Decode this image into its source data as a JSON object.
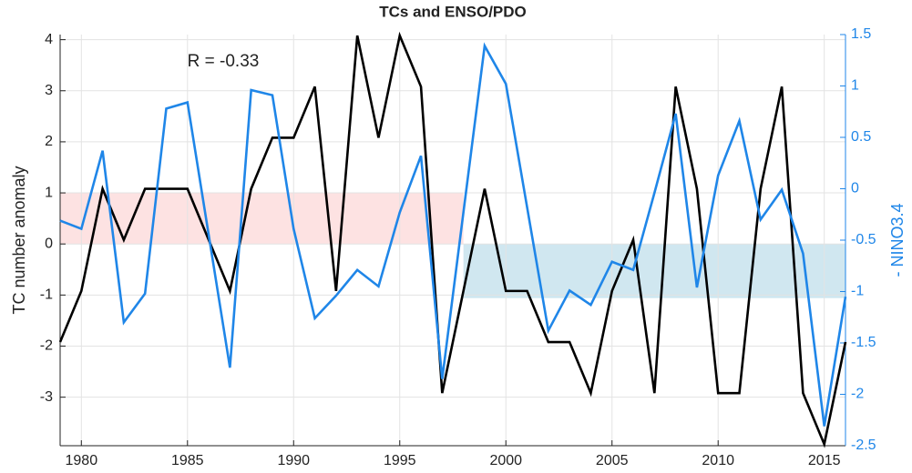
{
  "chart_data": {
    "type": "line",
    "title": "TCs and ENSO/PDO",
    "y_label": "TC number anomaly",
    "y2_label": "- NINO3.4",
    "annotation": "R = -0.33",
    "x": [
      1979,
      1980,
      1981,
      1982,
      1983,
      1984,
      1985,
      1986,
      1987,
      1988,
      1989,
      1990,
      1991,
      1992,
      1993,
      1994,
      1995,
      1996,
      1997,
      1998,
      1999,
      2000,
      2001,
      2002,
      2003,
      2004,
      2005,
      2006,
      2007,
      2008,
      2009,
      2010,
      2011,
      2012,
      2013,
      2014,
      2015,
      2016
    ],
    "series": [
      {
        "name": "TC number anomaly",
        "color": "#000000",
        "axis": "y",
        "values": [
          -1.92,
          -0.92,
          1.08,
          0.08,
          1.08,
          1.08,
          1.08,
          0.08,
          -0.92,
          1.08,
          2.08,
          2.08,
          3.08,
          -0.92,
          4.08,
          2.08,
          4.08,
          3.08,
          -2.92,
          -0.92,
          1.08,
          -0.92,
          -0.92,
          -1.92,
          -1.92,
          -2.92,
          -0.92,
          0.08,
          -2.92,
          3.08,
          1.08,
          -2.92,
          -2.92,
          1.08,
          3.08,
          -2.92,
          -3.92,
          -1.92
        ]
      },
      {
        "name": "- NINO3.4",
        "color": "#1f86e8",
        "axis": "y2",
        "values": [
          -0.31,
          -0.39,
          0.37,
          -1.3,
          -1.02,
          0.78,
          0.84,
          -0.45,
          -1.74,
          0.96,
          0.91,
          -0.39,
          -1.26,
          -1.04,
          -0.79,
          -0.95,
          -0.23,
          0.32,
          -1.85,
          -0.23,
          1.39,
          1.02,
          -0.18,
          -1.38,
          -0.99,
          -1.13,
          -0.71,
          -0.79,
          -0.04,
          0.73,
          -0.96,
          0.13,
          0.66,
          -0.3,
          -0.01,
          -0.63,
          -2.31,
          -1.05
        ]
      }
    ],
    "shaded_regions": [
      {
        "x": [
          1979,
          1998
        ],
        "y": [
          0,
          1
        ],
        "color": "#fde2e2"
      },
      {
        "x": [
          1998,
          2016
        ],
        "y": [
          -1.06,
          0
        ],
        "color": "#d0e7f0"
      }
    ],
    "xlim": [
      1979,
      2016
    ],
    "xticks": [
      1980,
      1985,
      1990,
      1995,
      2000,
      2005,
      2010,
      2015
    ],
    "ylim": [
      -3.95,
      4.1
    ],
    "yticks": [
      -3,
      -2,
      -1,
      0,
      1,
      2,
      3,
      4
    ],
    "y2lim": [
      -2.5,
      1.5
    ],
    "y2ticks": [
      -2.5,
      -2,
      -1.5,
      -1,
      -0.5,
      0,
      0.5,
      1,
      1.5
    ],
    "grid": true
  }
}
